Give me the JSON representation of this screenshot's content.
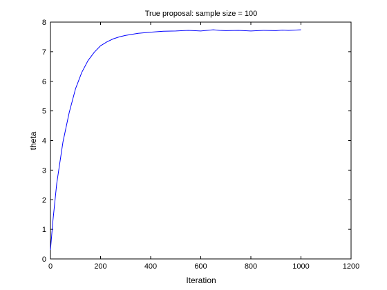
{
  "chart_data": {
    "type": "line",
    "title": "True proposal: sample size = 100",
    "xlabel": "Iteration",
    "ylabel": "theta",
    "xlim": [
      0,
      1200
    ],
    "ylim": [
      0,
      8
    ],
    "xticks": [
      0,
      200,
      400,
      600,
      800,
      1000,
      1200
    ],
    "yticks": [
      0,
      1,
      2,
      3,
      4,
      5,
      6,
      7,
      8
    ],
    "grid": false,
    "line_color": "#0000ff",
    "series": [
      {
        "x": [
          0,
          10,
          25,
          50,
          75,
          100,
          125,
          150,
          175,
          200,
          225,
          250,
          275,
          300,
          350,
          400,
          450,
          500,
          550,
          600,
          625,
          650,
          675,
          700,
          750,
          800,
          850,
          900,
          925,
          950,
          975,
          1000
        ],
        "y": [
          0.3,
          1.3,
          2.55,
          3.95,
          4.95,
          5.75,
          6.3,
          6.7,
          6.98,
          7.2,
          7.33,
          7.43,
          7.5,
          7.55,
          7.62,
          7.66,
          7.69,
          7.7,
          7.72,
          7.7,
          7.72,
          7.74,
          7.72,
          7.71,
          7.72,
          7.7,
          7.72,
          7.71,
          7.73,
          7.72,
          7.73,
          7.74
        ]
      }
    ]
  }
}
